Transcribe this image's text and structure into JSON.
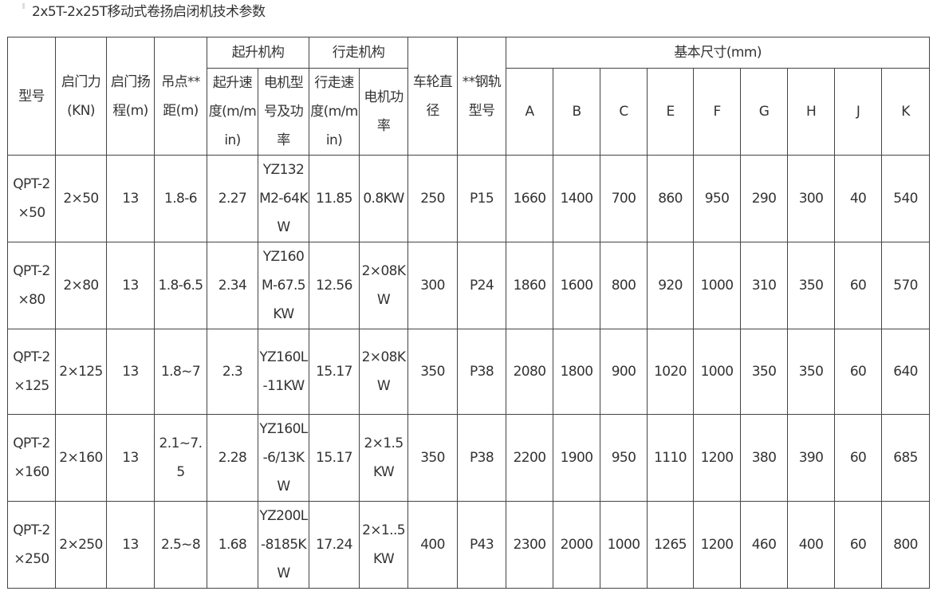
{
  "title": "2x5T-2x25T移动式卷扬启闭机技术参数",
  "header": {
    "model": "型号",
    "force": "启门力(KN)",
    "lift": "启门扬程(m)",
    "span": "吊点**距(m)",
    "hoist_group": "起升机构",
    "hoist_speed": "起升速度(m/min)",
    "hoist_motor": "电机型号及功率",
    "travel_group": "行走机构",
    "travel_speed": "行走速度(m/min)",
    "travel_motor": "电机功率",
    "wheel": "车轮直径",
    "rail": "**钢轨型号",
    "dims_group": "基本尺寸(mm)",
    "dims": [
      "A",
      "B",
      "C",
      "E",
      "F",
      "G",
      "H",
      "J",
      "K"
    ]
  },
  "rows": [
    [
      "QPT-2×50",
      "2×50",
      "13",
      "1.8-6",
      "2.27",
      "YZ132M2-64KW",
      "11.85",
      "0.8KW",
      "250",
      "P15",
      "1660",
      "1400",
      "700",
      "860",
      "950",
      "290",
      "300",
      "40",
      "540"
    ],
    [
      "QPT-2×80",
      "2×80",
      "13",
      "1.8-6.5",
      "2.34",
      "YZ160M-67.5KW",
      "12.56",
      "2×08KW",
      "300",
      "P24",
      "1860",
      "1600",
      "800",
      "920",
      "1000",
      "310",
      "350",
      "60",
      "570"
    ],
    [
      "QPT-2×125",
      "2×125",
      "13",
      "1.8~7",
      "2.3",
      "YZ160L-11KW",
      "15.17",
      "2×08KW",
      "350",
      "P38",
      "2080",
      "1800",
      "900",
      "1020",
      "1000",
      "350",
      "350",
      "60",
      "640"
    ],
    [
      "QPT-2×160",
      "2×160",
      "13",
      "2.1~7.5",
      "2.28",
      "YZ160L-6/13KW",
      "15.17",
      "2×1.5KW",
      "350",
      "P38",
      "2200",
      "1900",
      "950",
      "1110",
      "1200",
      "380",
      "390",
      "60",
      "685"
    ],
    [
      "QPT-2×250",
      "2×250",
      "13",
      "2.5~8",
      "1.68",
      "YZ200L-8185KW",
      "17.24",
      "2×1..5KW",
      "400",
      "P43",
      "2300",
      "2000",
      "1000",
      "1265",
      "1200",
      "460",
      "400",
      "60",
      "800"
    ]
  ]
}
